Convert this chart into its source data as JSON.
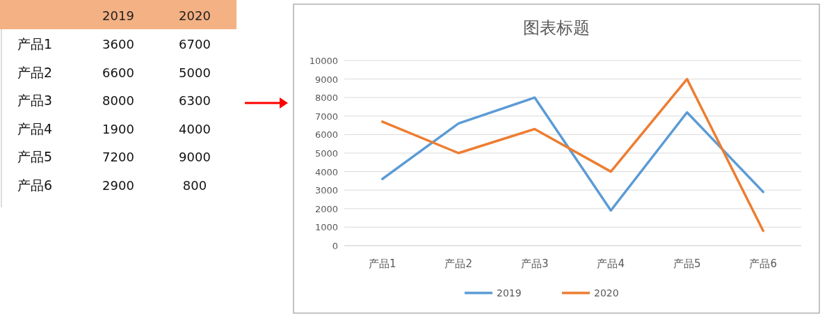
{
  "chart_data": [
    {
      "type": "heatmap",
      "categories": [
        "2019",
        "2020"
      ],
      "y_categories": [
        "产品1",
        "产品2",
        "产品3",
        "产品4",
        "产品5",
        "产品6"
      ],
      "cells": [
        [
          3600,
          6700
        ],
        [
          6600,
          5000
        ],
        [
          8000,
          6300
        ],
        [
          1900,
          4000
        ],
        [
          7200,
          9000
        ],
        [
          2900,
          800
        ]
      ],
      "data_labels": true
    },
    {
      "type": "line",
      "title": "图表标题",
      "categories": [
        "产品1",
        "产品2",
        "产品3",
        "产品4",
        "产品5",
        "产品6"
      ],
      "series": [
        {
          "name": "2019",
          "color": "#5b9bd5",
          "values": [
            3600,
            6600,
            8000,
            1900,
            7200,
            2900
          ]
        },
        {
          "name": "2020",
          "color": "#ed7d31",
          "values": [
            6700,
            5000,
            6300,
            4000,
            9000,
            800
          ]
        }
      ],
      "ylim": [
        0,
        10000
      ],
      "yticks": [
        0,
        1000,
        2000,
        3000,
        4000,
        5000,
        6000,
        7000,
        8000,
        9000,
        10000
      ],
      "grid": "y",
      "legend": "bottom"
    }
  ]
}
